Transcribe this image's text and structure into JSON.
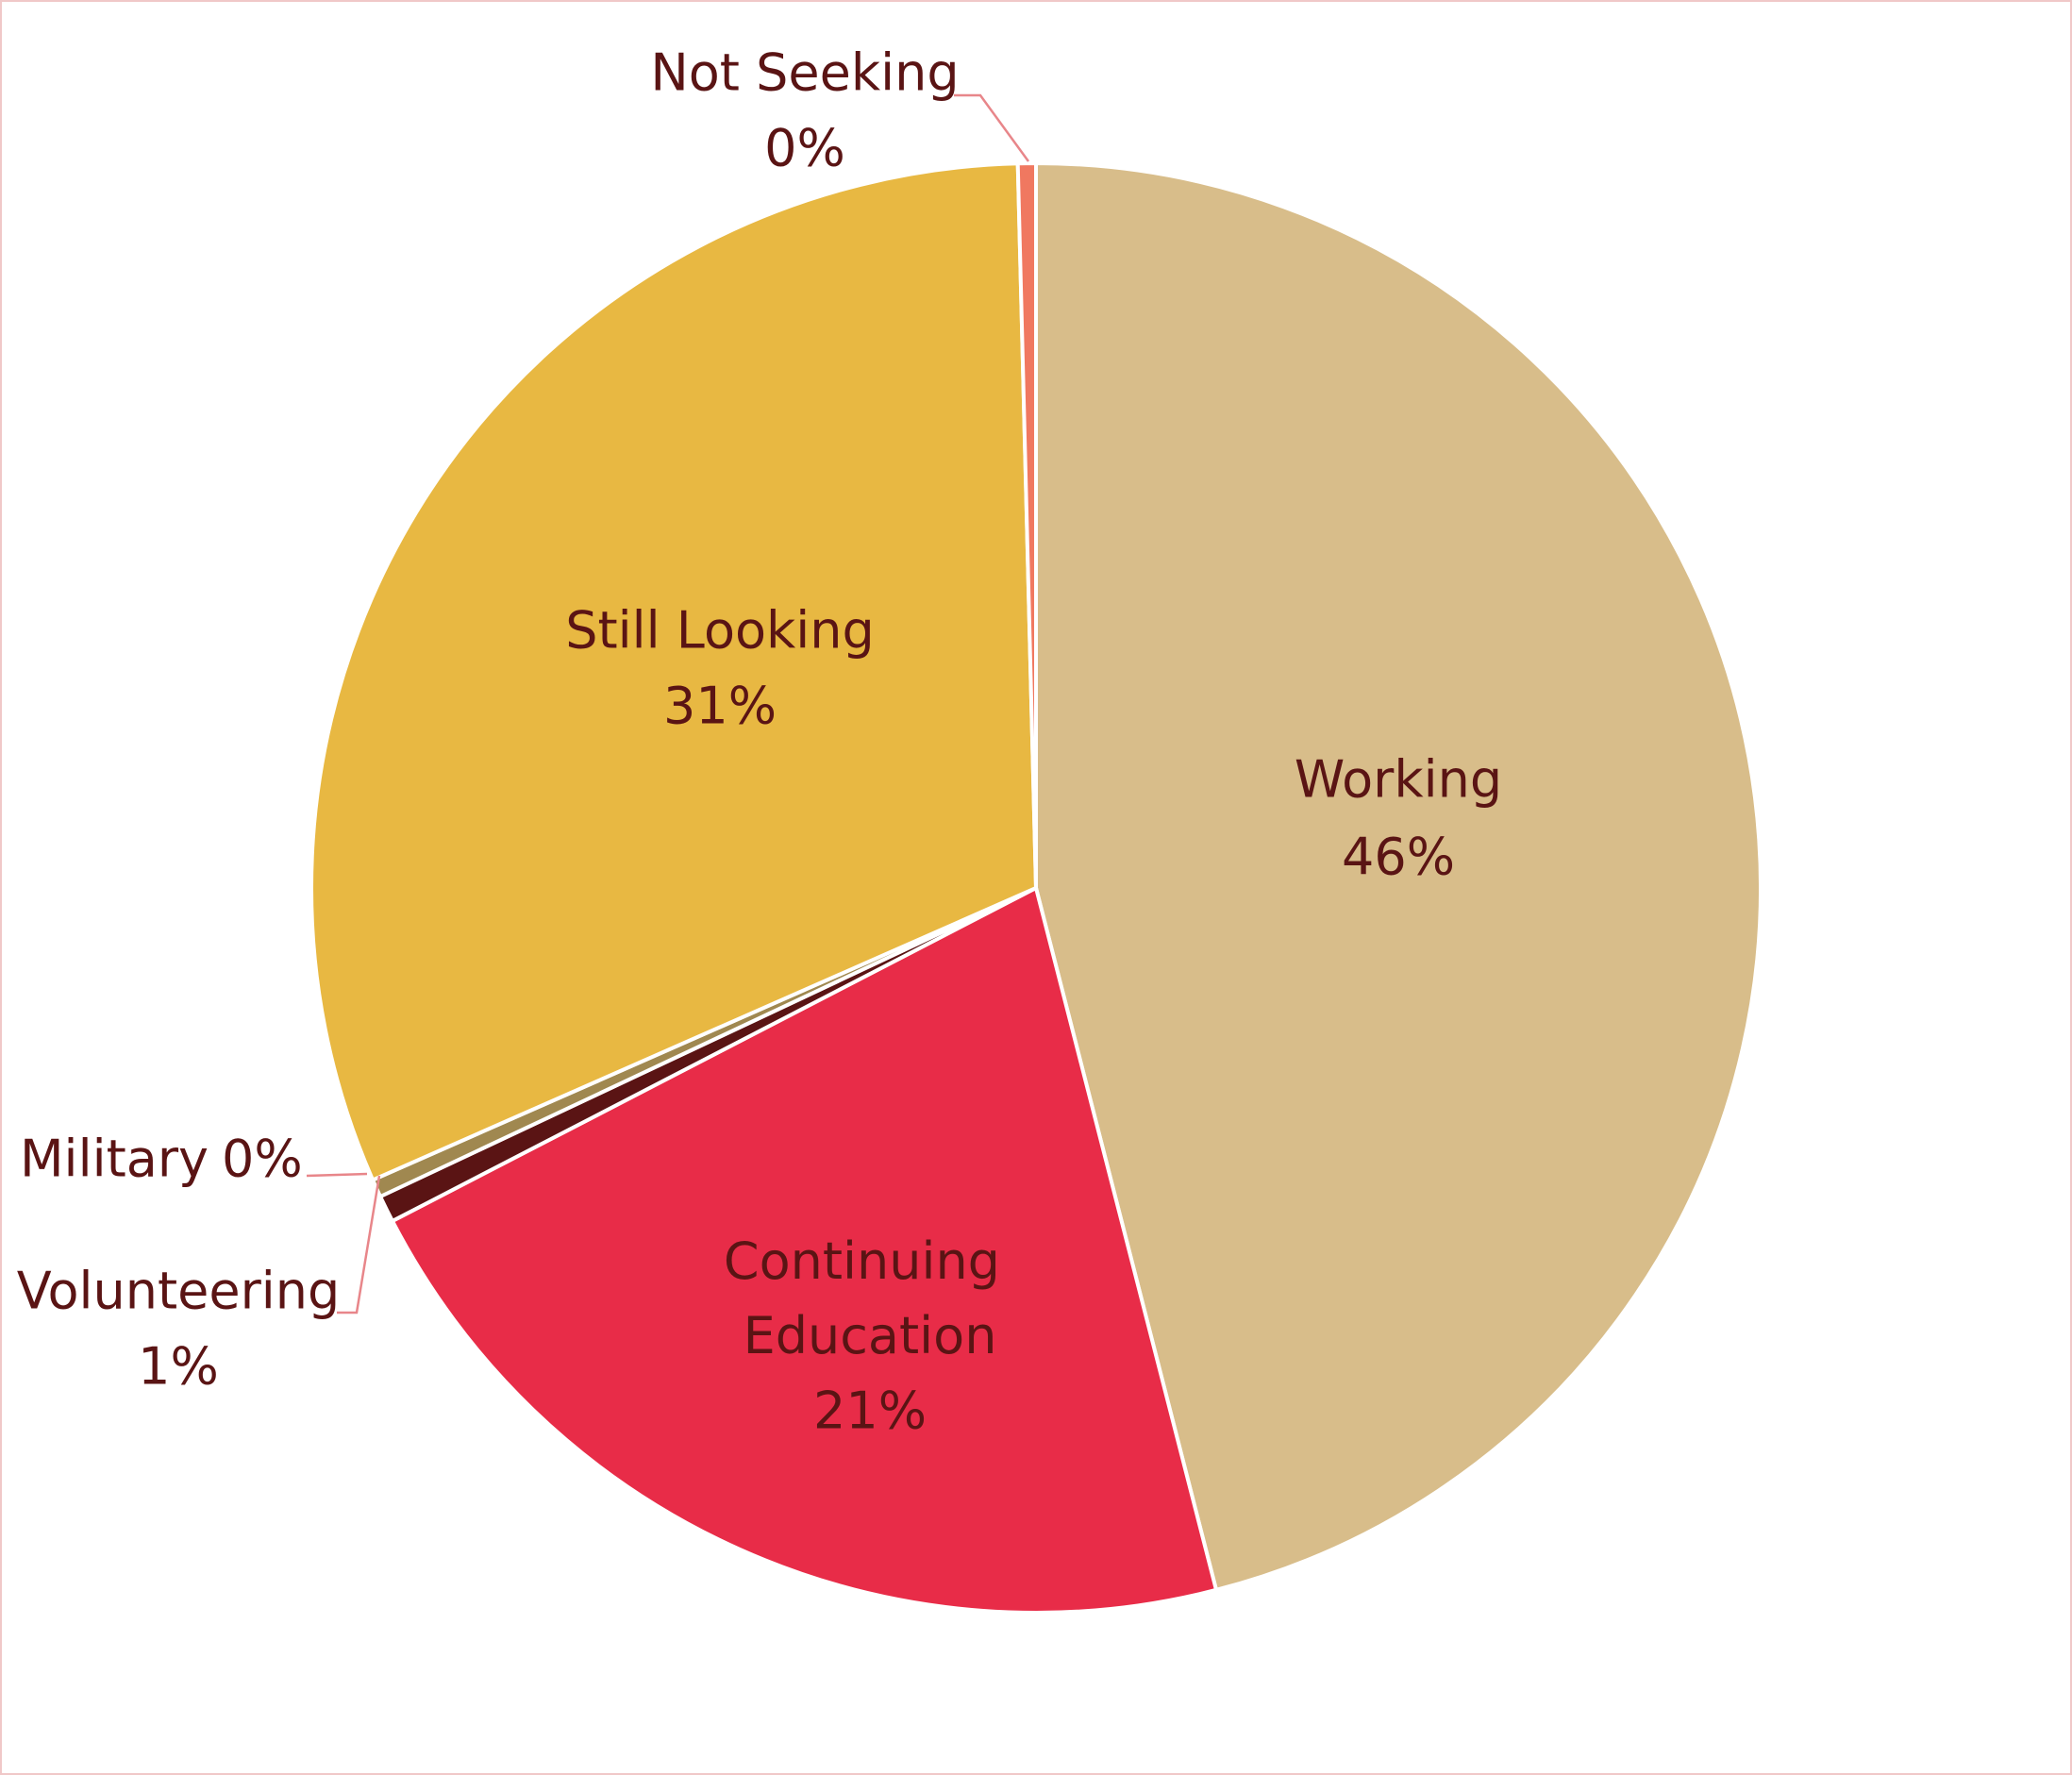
{
  "chart_data": {
    "type": "pie",
    "categories": [
      "Working",
      "Continuing Education",
      "Volunteering",
      "Military",
      "Still Looking",
      "Not Seeking"
    ],
    "values": [
      46.0,
      21.4,
      0.6,
      0.4,
      31.2,
      0.4
    ],
    "value_labels": [
      "46%",
      "21%",
      "1%",
      "0%",
      "31%",
      "0%"
    ],
    "colors": [
      "#d8bd8a",
      "#e82c48",
      "#5a1414",
      "#a08850",
      "#e8b842",
      "#f07860"
    ]
  }
}
